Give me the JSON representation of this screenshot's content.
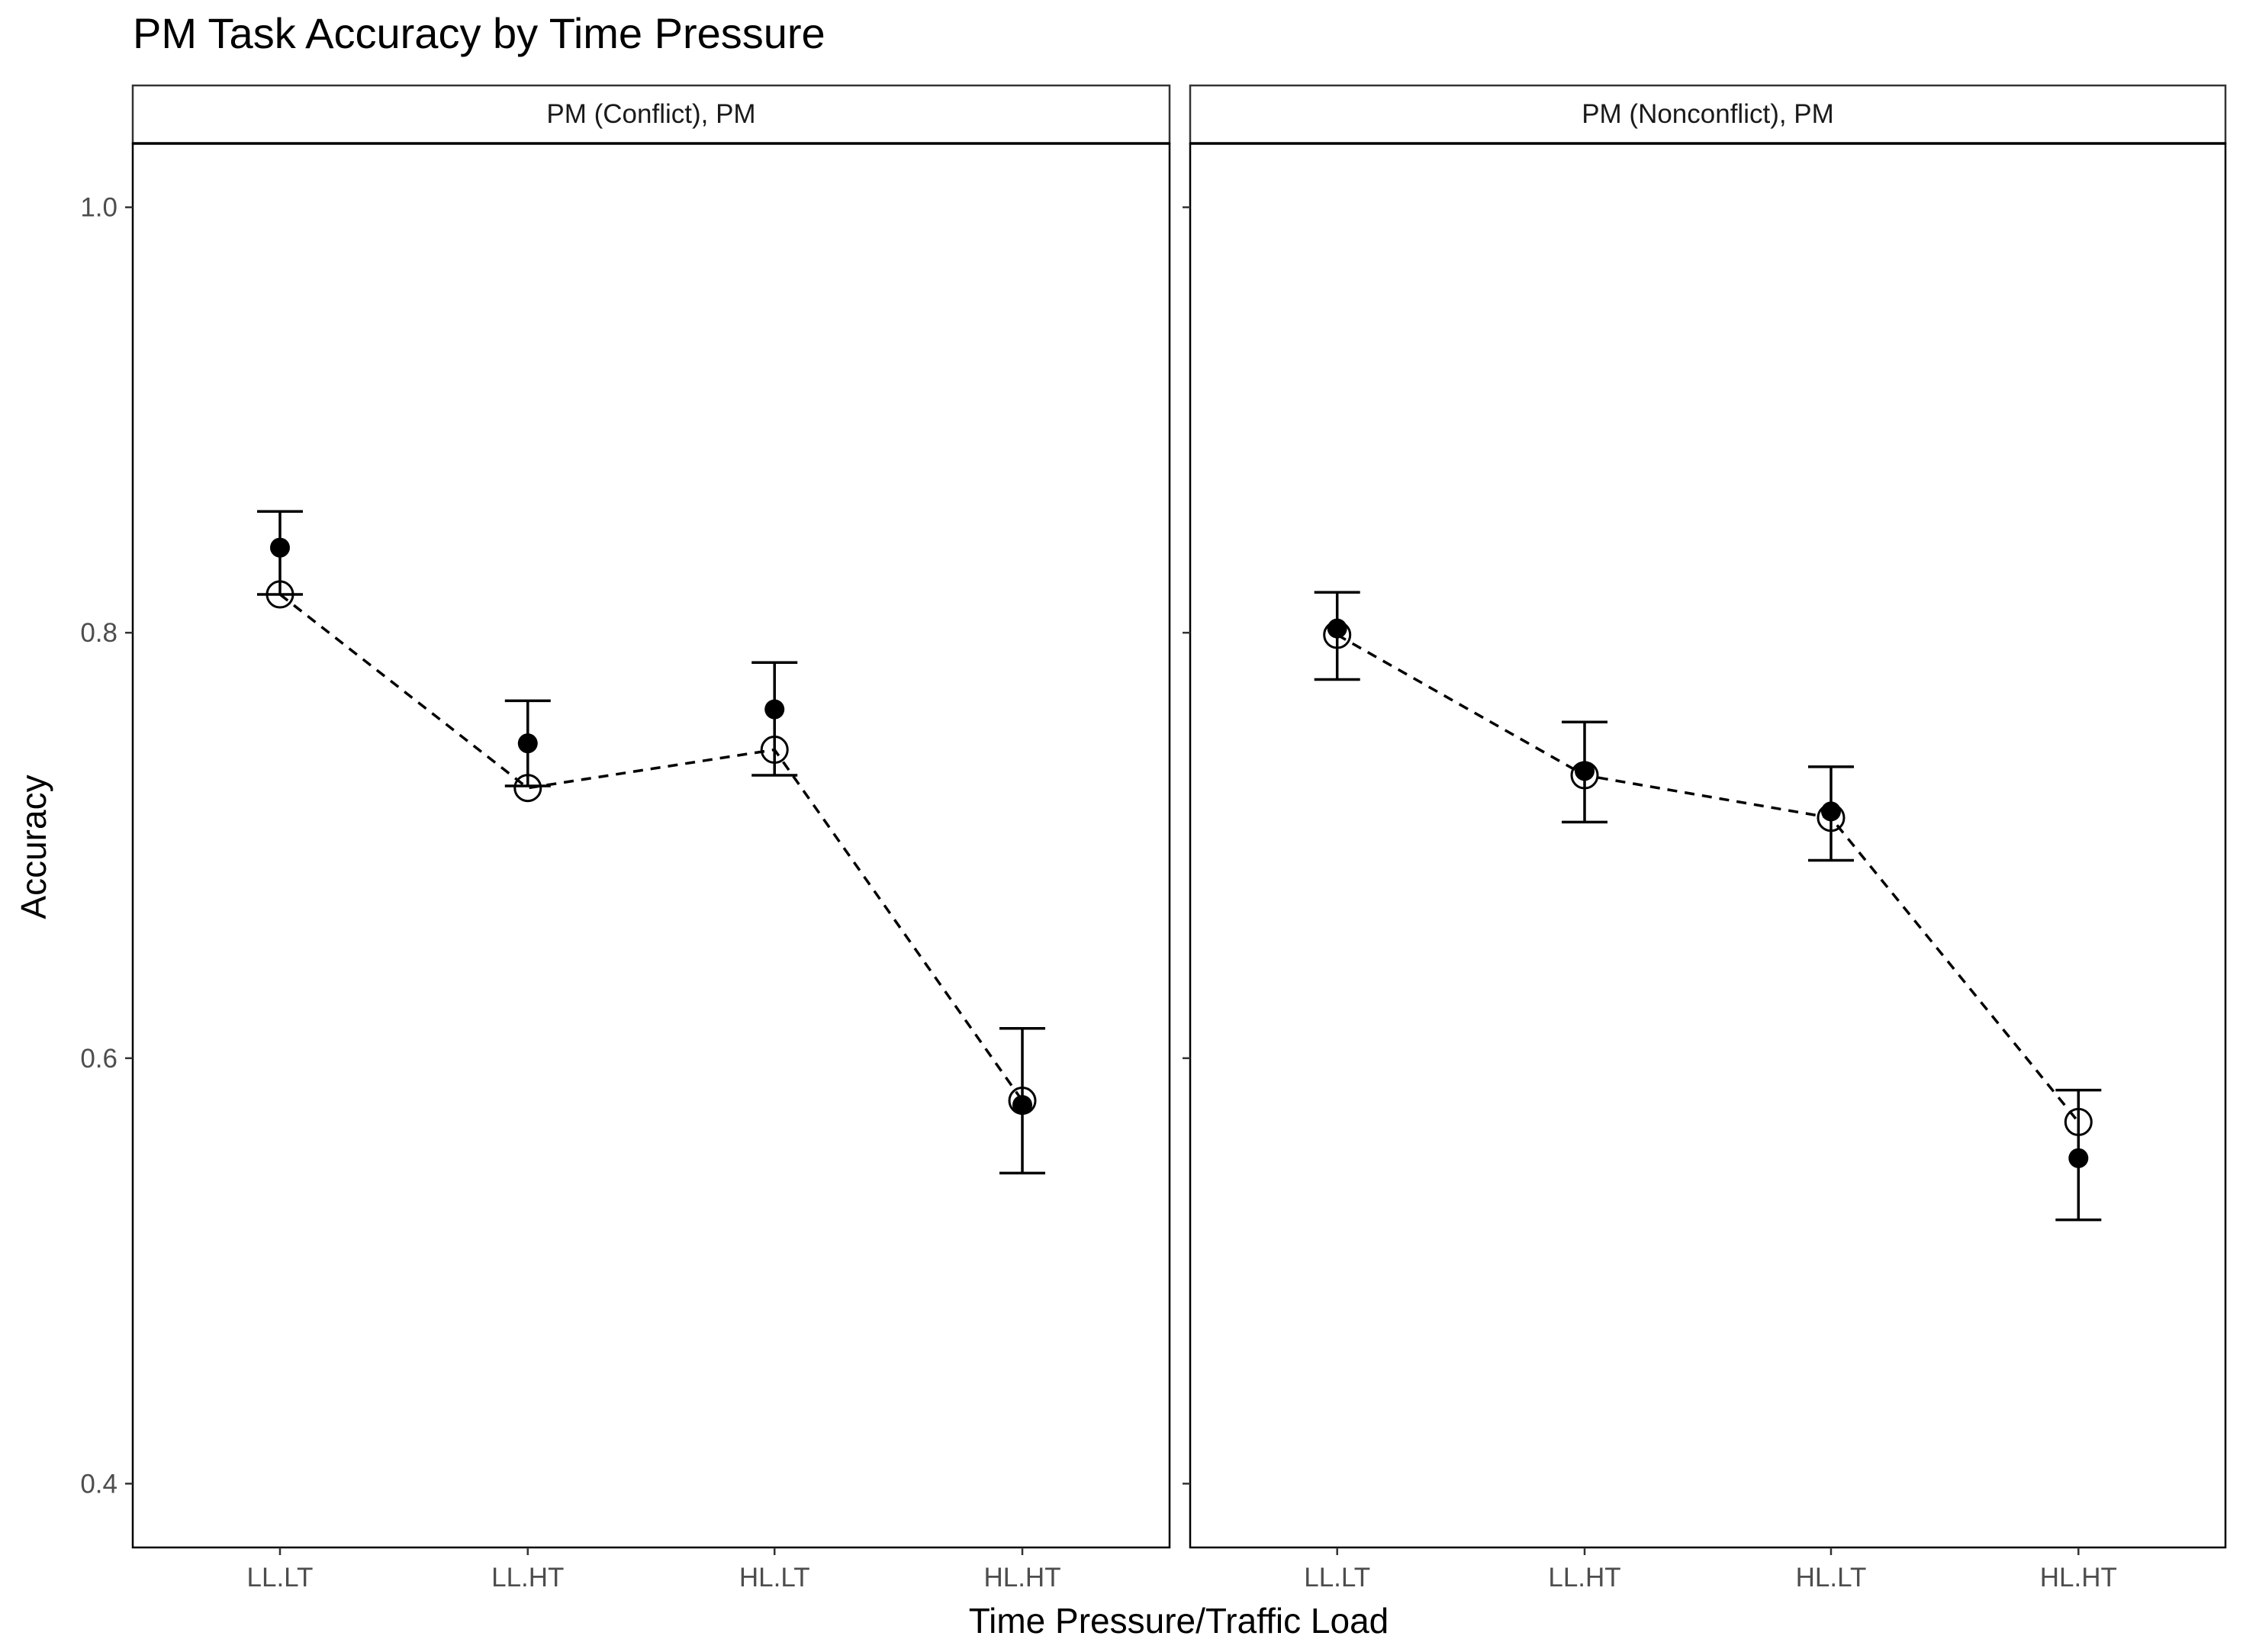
{
  "chart_data": {
    "type": "scatter",
    "title": "PM Task Accuracy by Time Pressure",
    "xlabel": "Time Pressure/Traffic Load",
    "ylabel": "Accuracy",
    "ylim": [
      0.37,
      1.03
    ],
    "yticks": [
      0.4,
      0.6,
      0.8,
      1.0
    ],
    "ytick_labels": [
      "0.4",
      "0.6",
      "0.8",
      "1.0"
    ],
    "categories": [
      "LL.LT",
      "LL.HT",
      "HL.LT",
      "HL.HT"
    ],
    "grid": false,
    "legend": "none",
    "panels": [
      {
        "strip": "PM (Conflict), PM",
        "observed": {
          "marker": "filled circle",
          "values": [
            0.84,
            0.748,
            0.764,
            0.578
          ]
        },
        "error_bars": {
          "lower": [
            0.818,
            0.728,
            0.733,
            0.546
          ],
          "upper": [
            0.857,
            0.768,
            0.786,
            0.614
          ]
        },
        "predicted": {
          "marker": "open circle",
          "line": "dashed",
          "values": [
            0.818,
            0.727,
            0.745,
            0.58
          ]
        }
      },
      {
        "strip": "PM (Nonconflict), PM",
        "observed": {
          "marker": "filled circle",
          "values": [
            0.802,
            0.735,
            0.716,
            0.553
          ]
        },
        "error_bars": {
          "lower": [
            0.778,
            0.711,
            0.693,
            0.524
          ],
          "upper": [
            0.819,
            0.758,
            0.737,
            0.585
          ]
        },
        "predicted": {
          "marker": "open circle",
          "line": "dashed",
          "values": [
            0.799,
            0.733,
            0.713,
            0.57
          ]
        }
      }
    ]
  }
}
